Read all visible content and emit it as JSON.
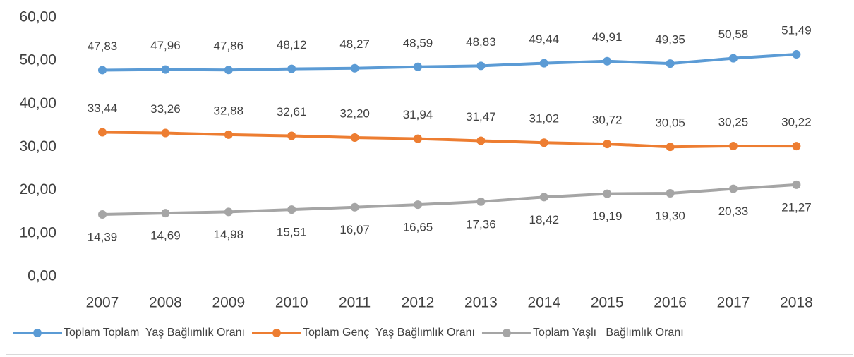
{
  "chart_data": {
    "type": "line",
    "categories": [
      "2007",
      "2008",
      "2009",
      "2010",
      "2011",
      "2012",
      "2013",
      "2014",
      "2015",
      "2016",
      "2017",
      "2018"
    ],
    "series": [
      {
        "name": "Toplam Toplam  Yaş Bağlımlık Oranı",
        "color": "#5b9bd5",
        "values": [
          47.83,
          47.96,
          47.86,
          48.12,
          48.27,
          48.59,
          48.83,
          49.44,
          49.91,
          49.35,
          50.58,
          51.49
        ],
        "value_labels": [
          "47,83",
          "47,96",
          "47,86",
          "48,12",
          "48,27",
          "48,59",
          "48,83",
          "49,44",
          "49,91",
          "49,35",
          "50,58",
          "51,49"
        ]
      },
      {
        "name": "Toplam Genç  Yaş Bağlımlık Oranı",
        "color": "#ed7d31",
        "values": [
          33.44,
          33.26,
          32.88,
          32.61,
          32.2,
          31.94,
          31.47,
          31.02,
          30.72,
          30.05,
          30.25,
          30.22
        ],
        "value_labels": [
          "33,44",
          "33,26",
          "32,88",
          "32,61",
          "32,20",
          "31,94",
          "31,47",
          "31,02",
          "30,72",
          "30,05",
          "30,25",
          "30,22"
        ]
      },
      {
        "name": "Toplam Yaşlı   Bağlımlık Oranı",
        "color": "#a5a5a5",
        "values": [
          14.39,
          14.69,
          14.98,
          15.51,
          16.07,
          16.65,
          17.36,
          18.42,
          19.19,
          19.3,
          20.33,
          21.27
        ],
        "value_labels": [
          "14,39",
          "14,69",
          "14,98",
          "15,51",
          "16,07",
          "16,65",
          "17,36",
          "18,42",
          "19,19",
          "19,30",
          "20,33",
          "21,27"
        ]
      }
    ],
    "ylim": [
      0,
      60
    ],
    "yticks": [
      {
        "value": 0,
        "label": "0,00"
      },
      {
        "value": 10,
        "label": "10,00"
      },
      {
        "value": 20,
        "label": "20,00"
      },
      {
        "value": 30,
        "label": "30,00"
      },
      {
        "value": 40,
        "label": "40,00"
      },
      {
        "value": 50,
        "label": "50,00"
      },
      {
        "value": 60,
        "label": "60,00"
      }
    ],
    "grid": false,
    "legend": "bottom"
  }
}
